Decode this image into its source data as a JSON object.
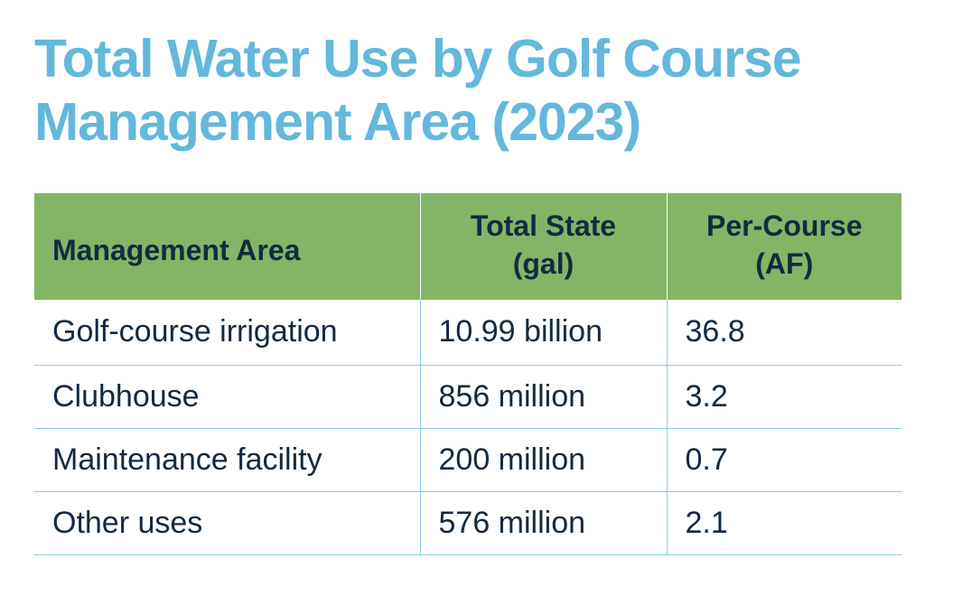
{
  "title": {
    "line1": "Total Water Use by Golf Course",
    "line2": "Management Area (2023)"
  },
  "table": {
    "headers": {
      "area": "Management Area",
      "total_line1": "Total State",
      "total_line2": "(gal)",
      "per_line1": "Per-Course",
      "per_line2": "(AF)"
    },
    "rows": [
      {
        "area": "Golf-course irrigation",
        "total": "10.99 billion",
        "per_course": "36.8"
      },
      {
        "area": "Clubhouse",
        "total": "856 million",
        "per_course": "3.2"
      },
      {
        "area": "Maintenance facility",
        "total": "200 million",
        "per_course": "0.7"
      },
      {
        "area": "Other uses",
        "total": "576 million",
        "per_course": "2.1"
      }
    ]
  },
  "colors": {
    "title": "#63b8dc",
    "header_bg": "#82b566",
    "text": "#132a41",
    "rule": "#8ccbe3"
  }
}
